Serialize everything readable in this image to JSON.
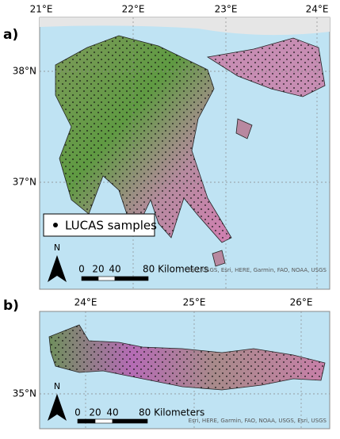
{
  "panel_a": {
    "label": "a)",
    "longitudes": [
      "21°E",
      "22°E",
      "23°E",
      "24°E"
    ],
    "latitudes": [
      "38°N",
      "37°N"
    ],
    "legend": "LUCAS samples",
    "north": "N",
    "scale": [
      "0",
      "20",
      "40",
      "80 Kilometers"
    ],
    "attribution": "Esri, USGS, Esri, HERE, Garmin, FAO, NOAA, USGS"
  },
  "panel_b": {
    "label": "b)",
    "longitudes": [
      "24°E",
      "25°E",
      "26°E"
    ],
    "latitudes": [
      "35°N"
    ],
    "north": "N",
    "scale": [
      "0",
      "20",
      "40",
      "80 Kilometers"
    ],
    "attribution": "Esri, HERE, Garmin, FAO, NOAA, USGS, Esri, USGS"
  }
}
